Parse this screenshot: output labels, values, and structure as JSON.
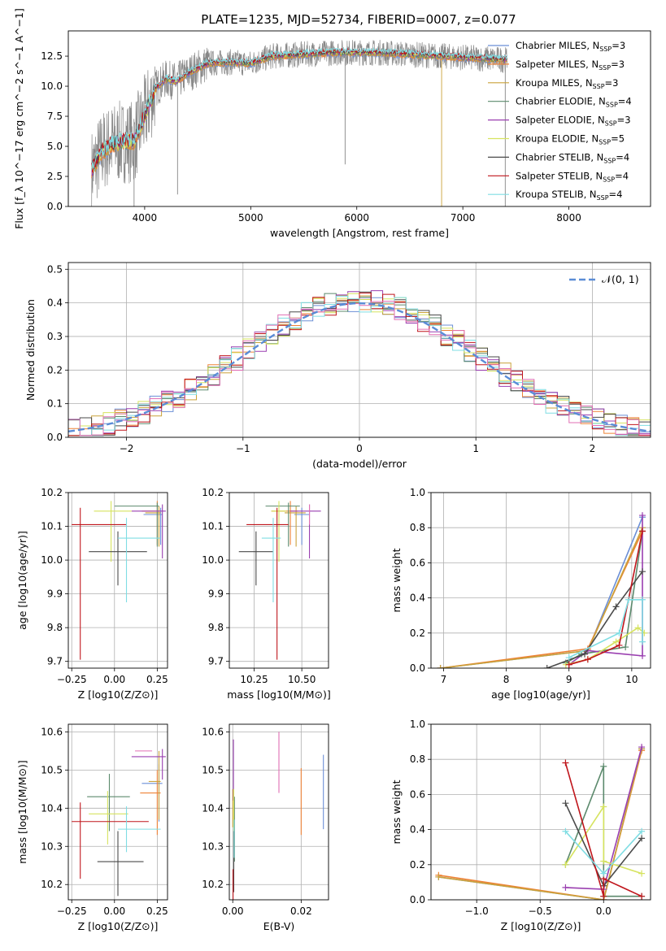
{
  "figure": {
    "title": "PLATE=1235, MJD=52734, FIBERID=0007, z=0.077"
  },
  "colors": {
    "Chabrier MILES": "#6b8fd6",
    "Salpeter MILES": "#ee8236",
    "Kroupa MILES": "#caa23a",
    "Chabrier ELODIE": "#5c8a6d",
    "Salpeter ELODIE": "#9a3fb0",
    "Kroupa ELODIE": "#d6e35f",
    "Chabrier STELIB": "#4a4a4a",
    "Salpeter STELIB": "#c0161c",
    "Kroupa STELIB": "#7fdde3",
    "data": "#888888",
    "gaussian": "#5a8cd6",
    "extra_pink": "#e06fb4"
  },
  "chart_data": [
    {
      "id": "spectrum",
      "type": "line",
      "xlabel": "wavelength [Angstrom, rest frame]",
      "ylabel": "Flux [f_λ 10^−17 erg cm^−2 s^−1 A^−1]",
      "xlim": [
        3280,
        8770
      ],
      "ylim": [
        0,
        14.6
      ],
      "xticks": [
        "4000",
        "5000",
        "6000",
        "7000",
        "8000"
      ],
      "yticks": [
        "0.0",
        "2.5",
        "5.0",
        "7.5",
        "10.0",
        "12.5"
      ],
      "legend_position": "right",
      "legend": [
        {
          "name": "Chabrier MILES",
          "nssp": "3"
        },
        {
          "name": "Salpeter MILES",
          "nssp": "3"
        },
        {
          "name": "Kroupa MILES",
          "nssp": "3"
        },
        {
          "name": "Chabrier ELODIE",
          "nssp": "4"
        },
        {
          "name": "Salpeter ELODIE",
          "nssp": "3"
        },
        {
          "name": "Kroupa ELODIE",
          "nssp": "5"
        },
        {
          "name": "Chabrier STELIB",
          "nssp": "4"
        },
        {
          "name": "Salpeter STELIB",
          "nssp": "4"
        },
        {
          "name": "Kroupa STELIB",
          "nssp": "4"
        }
      ],
      "model_continuum": {
        "x": [
          3500,
          3600,
          3700,
          3800,
          3900,
          4000,
          4100,
          4200,
          4300,
          4400,
          4500,
          4600,
          4800,
          5000,
          5200,
          5400,
          5600,
          5800,
          6000,
          6200,
          6400,
          6600,
          6800,
          7000,
          7200,
          7400
        ],
        "y": [
          3.0,
          4.6,
          5.2,
          5.4,
          5.4,
          7.5,
          9.8,
          10.6,
          10.4,
          11.0,
          11.5,
          11.9,
          12.0,
          11.9,
          12.5,
          12.6,
          12.7,
          12.8,
          12.8,
          12.8,
          12.7,
          12.6,
          12.5,
          12.4,
          12.3,
          12.2
        ]
      }
    },
    {
      "id": "residuals",
      "type": "line",
      "xlabel": "(data-model)/error",
      "ylabel": "Normed distribution",
      "xlim": [
        -2.5,
        2.5
      ],
      "ylim": [
        0,
        0.52
      ],
      "xticks": [
        "−2",
        "−1",
        "0",
        "1",
        "2"
      ],
      "yticks": [
        "0.0",
        "0.1",
        "0.2",
        "0.3",
        "0.4",
        "0.5"
      ],
      "legend_label": "𝒩(0, 1)",
      "legend_position": "top-right",
      "gaussian": {
        "mean": 0,
        "sigma": 1
      }
    },
    {
      "id": "age-vs-Z",
      "type": "scatter",
      "xlabel": "Z [log10(Z/Z⊙)]",
      "ylabel": "age  [log10(age/yr)]",
      "xlim": [
        -0.27,
        0.31
      ],
      "ylim": [
        9.68,
        10.2
      ],
      "xticks": [
        "−0.25",
        "0.00",
        "0.25"
      ],
      "yticks": [
        "9.7",
        "9.8",
        "9.9",
        "10.0",
        "10.1",
        "10.2"
      ],
      "points": [
        {
          "series": "Chabrier MILES",
          "x": 0.27,
          "y": 10.135,
          "xerr": [
            0.1,
            0.01
          ],
          "yerr": [
            0.09,
            0.02
          ]
        },
        {
          "series": "Salpeter MILES",
          "x": 0.25,
          "y": 10.145,
          "xerr": [
            0.09,
            0.01
          ],
          "yerr": [
            0.1,
            0.03
          ]
        },
        {
          "series": "Kroupa MILES",
          "x": 0.26,
          "y": 10.14,
          "xerr": [
            0.08,
            0.01
          ],
          "yerr": [
            0.1,
            0.02
          ]
        },
        {
          "series": "Chabrier ELODIE",
          "x": 0.25,
          "y": 10.16,
          "xerr": [
            0.25,
            0.01
          ],
          "yerr": [
            0.12,
            0.01
          ]
        },
        {
          "series": "Salpeter ELODIE",
          "x": 0.28,
          "y": 10.145,
          "xerr": [
            0.18,
            0.02
          ],
          "yerr": [
            0.14,
            0.02
          ]
        },
        {
          "series": "Kroupa ELODIE",
          "x": -0.02,
          "y": 10.145,
          "xerr": [
            0.1,
            0.12
          ],
          "yerr": [
            0.15,
            0.03
          ]
        },
        {
          "series": "Chabrier STELIB",
          "x": 0.02,
          "y": 10.025,
          "xerr": [
            0.17,
            0.17
          ],
          "yerr": [
            0.1,
            0.06
          ]
        },
        {
          "series": "Salpeter STELIB",
          "x": -0.2,
          "y": 10.105,
          "xerr": [
            0.05,
            0.27
          ],
          "yerr": [
            0.4,
            0.05
          ]
        },
        {
          "series": "Kroupa STELIB",
          "x": 0.07,
          "y": 10.065,
          "xerr": [
            0.05,
            0.2
          ],
          "yerr": [
            0.19,
            0.06
          ]
        }
      ]
    },
    {
      "id": "age-vs-mass",
      "type": "scatter",
      "xlabel": "mass [log10(M/M⊙)]",
      "ylabel": "",
      "xlim": [
        10.12,
        10.64
      ],
      "ylim": [
        9.68,
        10.2
      ],
      "xticks": [
        "10.25",
        "10.50"
      ],
      "yticks": [
        "9.7",
        "9.8",
        "9.9",
        "10.0",
        "10.1",
        "10.2"
      ],
      "points": [
        {
          "series": "Chabrier MILES",
          "x": 10.5,
          "y": 10.135,
          "xerr": [
            0.04,
            0.04
          ],
          "yerr": [
            0.09,
            0.02
          ]
        },
        {
          "series": "Salpeter MILES",
          "x": 10.44,
          "y": 10.145,
          "xerr": [
            0.1,
            0.04
          ],
          "yerr": [
            0.1,
            0.03
          ]
        },
        {
          "series": "Kroupa MILES",
          "x": 10.47,
          "y": 10.14,
          "xerr": [
            0.06,
            0.05
          ],
          "yerr": [
            0.1,
            0.02
          ]
        },
        {
          "series": "Chabrier ELODIE",
          "x": 10.43,
          "y": 10.16,
          "xerr": [
            0.12,
            0.06
          ],
          "yerr": [
            0.12,
            0.01
          ]
        },
        {
          "series": "Salpeter ELODIE",
          "x": 10.54,
          "y": 10.145,
          "xerr": [
            0.1,
            0.06
          ],
          "yerr": [
            0.14,
            0.02
          ]
        },
        {
          "series": "Kroupa ELODIE",
          "x": 10.38,
          "y": 10.145,
          "xerr": [
            0.04,
            0.04
          ],
          "yerr": [
            0.15,
            0.03
          ]
        },
        {
          "series": "Chabrier STELIB",
          "x": 10.26,
          "y": 10.025,
          "xerr": [
            0.09,
            0.09
          ],
          "yerr": [
            0.1,
            0.06
          ]
        },
        {
          "series": "Salpeter STELIB",
          "x": 10.37,
          "y": 10.105,
          "xerr": [
            0.16,
            0.06
          ],
          "yerr": [
            0.4,
            0.05
          ]
        },
        {
          "series": "Kroupa STELIB",
          "x": 10.35,
          "y": 10.065,
          "xerr": [
            0.06,
            0.04
          ],
          "yerr": [
            0.19,
            0.06
          ]
        },
        {
          "series": "extra_pink",
          "x": 10.54,
          "y": 10.135,
          "xerr": [
            0.0,
            0.0
          ],
          "yerr": [
            0.03,
            0.03
          ]
        }
      ]
    },
    {
      "id": "massweight-vs-age",
      "type": "line",
      "xlabel": "age  [log10(age/yr)]",
      "ylabel": "mass weight",
      "xlim": [
        6.8,
        10.3
      ],
      "ylim": [
        0,
        1.0
      ],
      "xticks": [
        "7",
        "8",
        "9",
        "10"
      ],
      "yticks": [
        "0.0",
        "0.2",
        "0.4",
        "0.6",
        "0.8",
        "1.0"
      ],
      "series": [
        {
          "name": "Chabrier MILES",
          "x": [
            6.95,
            9.3,
            10.17
          ],
          "y": [
            0.0,
            0.1,
            0.86
          ]
        },
        {
          "name": "Salpeter MILES",
          "x": [
            6.95,
            9.3,
            10.17
          ],
          "y": [
            0.0,
            0.11,
            0.78
          ]
        },
        {
          "name": "Kroupa MILES",
          "x": [
            6.95,
            9.3,
            10.17
          ],
          "y": [
            0.0,
            0.1,
            0.8
          ]
        },
        {
          "name": "Chabrier ELODIE",
          "x": [
            8.95,
            9.2,
            9.9,
            10.17
          ],
          "y": [
            0.03,
            0.08,
            0.12,
            0.78
          ]
        },
        {
          "name": "Salpeter ELODIE",
          "x": [
            9.0,
            9.3,
            10.17,
            10.17
          ],
          "y": [
            0.02,
            0.1,
            0.07,
            0.87
          ]
        },
        {
          "name": "Kroupa ELODIE",
          "x": [
            8.95,
            9.3,
            9.75,
            10.1,
            10.2
          ],
          "y": [
            0.02,
            0.05,
            0.15,
            0.23,
            0.2
          ]
        },
        {
          "name": "Chabrier STELIB",
          "x": [
            8.65,
            9.25,
            9.75,
            10.17
          ],
          "y": [
            0.0,
            0.08,
            0.35,
            0.55
          ]
        },
        {
          "name": "Salpeter STELIB",
          "x": [
            9.0,
            9.3,
            9.8,
            10.17
          ],
          "y": [
            0.02,
            0.05,
            0.13,
            0.78
          ]
        },
        {
          "name": "Kroupa STELIB",
          "x": [
            9.0,
            9.8,
            9.95,
            10.17,
            10.17
          ],
          "y": [
            0.06,
            0.2,
            0.39,
            0.39,
            0.15
          ]
        }
      ]
    },
    {
      "id": "mass-vs-Z",
      "type": "scatter",
      "xlabel": "Z [log10(Z/Z⊙)]",
      "ylabel": "mass [log10(M/M⊙)]",
      "xlim": [
        -0.27,
        0.31
      ],
      "ylim": [
        10.16,
        10.62
      ],
      "xticks": [
        "−0.25",
        "0.00",
        "0.25"
      ],
      "yticks": [
        "10.2",
        "10.3",
        "10.4",
        "10.5",
        "10.6"
      ],
      "points": [
        {
          "series": "Chabrier MILES",
          "x": 0.26,
          "y": 10.465,
          "xerr": [
            0.1,
            0.02
          ],
          "yerr": [
            0.1,
            0.05
          ]
        },
        {
          "series": "Salpeter MILES",
          "x": 0.25,
          "y": 10.44,
          "xerr": [
            0.1,
            0.02
          ],
          "yerr": [
            0.11,
            0.06
          ]
        },
        {
          "series": "Kroupa MILES",
          "x": 0.26,
          "y": 10.47,
          "xerr": [
            0.06,
            0.01
          ],
          "yerr": [
            0.1,
            0.08
          ]
        },
        {
          "series": "Chabrier ELODIE",
          "x": -0.03,
          "y": 10.43,
          "xerr": [
            0.13,
            0.12
          ],
          "yerr": [
            0.09,
            0.06
          ]
        },
        {
          "series": "Salpeter ELODIE",
          "x": 0.28,
          "y": 10.535,
          "xerr": [
            0.18,
            0.02
          ],
          "yerr": [
            0.06,
            0.02
          ]
        },
        {
          "series": "Kroupa ELODIE",
          "x": -0.04,
          "y": 10.385,
          "xerr": [
            0.11,
            0.12
          ],
          "yerr": [
            0.08,
            0.06
          ]
        },
        {
          "series": "Chabrier STELIB",
          "x": 0.02,
          "y": 10.26,
          "xerr": [
            0.12,
            0.15
          ],
          "yerr": [
            0.09,
            0.08
          ]
        },
        {
          "series": "Salpeter STELIB",
          "x": -0.2,
          "y": 10.365,
          "xerr": [
            0.05,
            0.4
          ],
          "yerr": [
            0.15,
            0.05
          ]
        },
        {
          "series": "Kroupa STELIB",
          "x": 0.07,
          "y": 10.345,
          "xerr": [
            0.05,
            0.2
          ],
          "yerr": [
            0.06,
            0.06
          ]
        },
        {
          "series": "extra_pink",
          "x": 0.22,
          "y": 10.55,
          "xerr": [
            0.1,
            0.0
          ],
          "yerr": [
            0.0,
            0.0
          ]
        }
      ]
    },
    {
      "id": "mass-vs-EBV",
      "type": "scatter",
      "xlabel": "E(B-V)",
      "ylabel": "",
      "xlim": [
        -0.001,
        0.028
      ],
      "ylim": [
        10.16,
        10.62
      ],
      "xticks": [
        "0.00",
        "0.02"
      ],
      "yticks": [
        "10.2",
        "10.3",
        "10.4",
        "10.5",
        "10.6"
      ],
      "points": [
        {
          "series": "Chabrier MILES",
          "x": 0.0265,
          "y": 10.44,
          "xerr": [
            0,
            0
          ],
          "yerr": [
            0.095,
            0.1
          ]
        },
        {
          "series": "Salpeter MILES",
          "x": 0.02,
          "y": 10.415,
          "xerr": [
            0,
            0
          ],
          "yerr": [
            0.085,
            0.09
          ]
        },
        {
          "series": "Kroupa MILES",
          "x": 0.0,
          "y": 10.4,
          "xerr": [
            0,
            0
          ],
          "yerr": [
            0.05,
            0.05
          ]
        },
        {
          "series": "Chabrier ELODIE",
          "x": 0.0005,
          "y": 10.38,
          "xerr": [
            0,
            0
          ],
          "yerr": [
            0.12,
            0.05
          ]
        },
        {
          "series": "Salpeter ELODIE",
          "x": 0.0002,
          "y": 10.52,
          "xerr": [
            0,
            0
          ],
          "yerr": [
            0.1,
            0.06
          ]
        },
        {
          "series": "Kroupa ELODIE",
          "x": 0.0003,
          "y": 10.4,
          "xerr": [
            0,
            0
          ],
          "yerr": [
            0.1,
            0.05
          ]
        },
        {
          "series": "Chabrier STELIB",
          "x": 0.0003,
          "y": 10.26,
          "xerr": [
            0,
            0
          ],
          "yerr": [
            0.08,
            0.08
          ]
        },
        {
          "series": "Salpeter STELIB",
          "x": 0.0001,
          "y": 10.2,
          "xerr": [
            0,
            0
          ],
          "yerr": [
            0.04,
            0.04
          ]
        },
        {
          "series": "Kroupa STELIB",
          "x": 0.0004,
          "y": 10.32,
          "xerr": [
            0,
            0
          ],
          "yerr": [
            0.05,
            0.05
          ]
        },
        {
          "series": "extra_pink",
          "x": 0.0135,
          "y": 10.52,
          "xerr": [
            0,
            0
          ],
          "yerr": [
            0.08,
            0.08
          ]
        }
      ]
    },
    {
      "id": "massweight-vs-Z",
      "type": "line",
      "xlabel": "Z [log10(Z/Z⊙)]",
      "ylabel": "mass weight",
      "xlim": [
        -1.36,
        0.37
      ],
      "ylim": [
        0,
        1.0
      ],
      "xticks": [
        "−1.0",
        "−0.5",
        "0.0"
      ],
      "yticks": [
        "0.0",
        "0.2",
        "0.4",
        "0.6",
        "0.8",
        "1.0"
      ],
      "series": [
        {
          "name": "Chabrier MILES",
          "x": [
            -1.3,
            0.0,
            0.3
          ],
          "y": [
            0.13,
            0.0,
            0.86
          ]
        },
        {
          "name": "Salpeter MILES",
          "x": [
            -1.3,
            0.0,
            0.3
          ],
          "y": [
            0.14,
            0.0,
            0.85
          ]
        },
        {
          "name": "Kroupa MILES",
          "x": [
            -1.3,
            0.0,
            0.3
          ],
          "y": [
            0.13,
            0.0,
            0.86
          ]
        },
        {
          "name": "Chabrier ELODIE",
          "x": [
            -0.3,
            0.0,
            0.0,
            0.3
          ],
          "y": [
            0.2,
            0.76,
            0.02,
            0.02
          ]
        },
        {
          "name": "Salpeter ELODIE",
          "x": [
            -0.3,
            0.0,
            0.3
          ],
          "y": [
            0.07,
            0.06,
            0.87
          ]
        },
        {
          "name": "Kroupa ELODIE",
          "x": [
            -0.3,
            0.0,
            0.0,
            0.3
          ],
          "y": [
            0.2,
            0.53,
            0.22,
            0.15
          ]
        },
        {
          "name": "Chabrier STELIB",
          "x": [
            -0.3,
            0.0,
            0.3
          ],
          "y": [
            0.55,
            0.08,
            0.35
          ]
        },
        {
          "name": "Salpeter STELIB",
          "x": [
            -0.3,
            0.0,
            0.0,
            0.3
          ],
          "y": [
            0.78,
            0.02,
            0.12,
            0.02
          ]
        },
        {
          "name": "Kroupa STELIB",
          "x": [
            -0.3,
            0.0,
            0.3
          ],
          "y": [
            0.39,
            0.15,
            0.39
          ]
        }
      ]
    }
  ]
}
